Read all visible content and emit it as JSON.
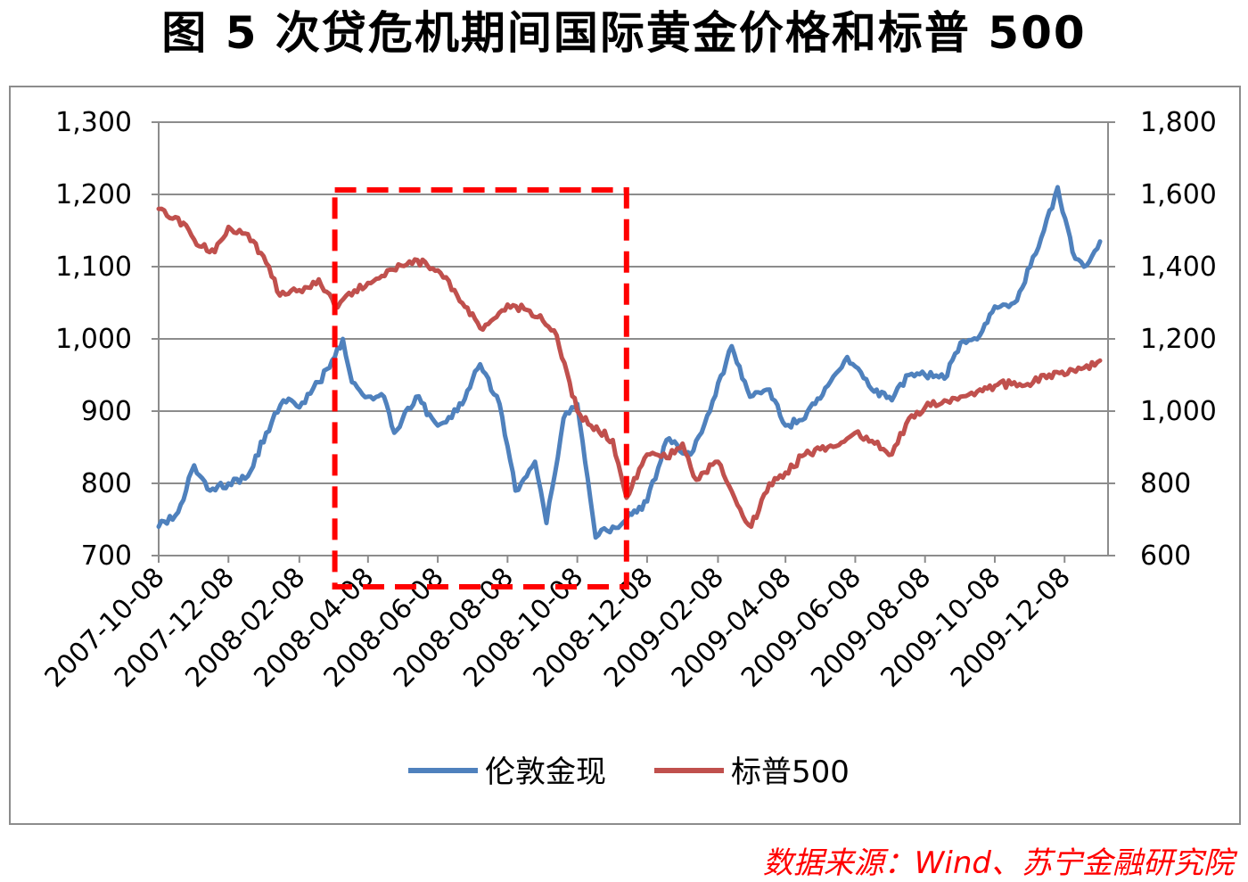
{
  "title": "图 5  次贷危机期间国际黄金价格和标普 500",
  "source": "数据来源：Wind、苏宁金融研究院",
  "chart_data": {
    "type": "line",
    "left_axis": {
      "ylim": [
        700,
        1300
      ],
      "ticks": [
        "700",
        "800",
        "900",
        "1,000",
        "1,100",
        "1,200",
        "1,300"
      ]
    },
    "right_axis": {
      "ylim": [
        600,
        1800
      ],
      "ticks": [
        "600",
        "800",
        "1,000",
        "1,200",
        "1,400",
        "1,600",
        "1,800"
      ]
    },
    "x_tick_labels": [
      "2007-10-08",
      "2007-12-08",
      "2008-02-08",
      "2008-04-08",
      "2008-06-08",
      "2008-08-08",
      "2008-10-08",
      "2008-12-08",
      "2009-02-08",
      "2009-04-08",
      "2009-06-08",
      "2009-08-08",
      "2009-10-08",
      "2009-12-08"
    ],
    "x_range": [
      "2007-10-08",
      "2010-01-15"
    ],
    "grid": true,
    "legend_position": "bottom",
    "highlight_box": {
      "x_range": [
        "2008-03-10",
        "2008-11-20"
      ],
      "color": "#ff0000",
      "style": "dashed"
    },
    "series": [
      {
        "name": "伦敦金现",
        "axis": "left",
        "color": "#4f81bd",
        "points": [
          [
            "2007-10-08",
            740
          ],
          [
            "2007-10-25",
            760
          ],
          [
            "2007-11-08",
            825
          ],
          [
            "2007-11-22",
            790
          ],
          [
            "2007-12-08",
            800
          ],
          [
            "2007-12-25",
            810
          ],
          [
            "2008-01-10",
            870
          ],
          [
            "2008-01-25",
            915
          ],
          [
            "2008-02-08",
            905
          ],
          [
            "2008-02-25",
            940
          ],
          [
            "2008-03-10",
            975
          ],
          [
            "2008-03-17",
            1000
          ],
          [
            "2008-03-25",
            940
          ],
          [
            "2008-04-08",
            920
          ],
          [
            "2008-04-22",
            920
          ],
          [
            "2008-05-01",
            870
          ],
          [
            "2008-05-20",
            920
          ],
          [
            "2008-06-08",
            880
          ],
          [
            "2008-06-25",
            900
          ],
          [
            "2008-07-15",
            965
          ],
          [
            "2008-08-01",
            910
          ],
          [
            "2008-08-15",
            790
          ],
          [
            "2008-09-01",
            830
          ],
          [
            "2008-09-11",
            745
          ],
          [
            "2008-09-26",
            890
          ],
          [
            "2008-10-08",
            910
          ],
          [
            "2008-10-24",
            725
          ],
          [
            "2008-11-08",
            740
          ],
          [
            "2008-11-20",
            750
          ],
          [
            "2008-12-08",
            775
          ],
          [
            "2008-12-25",
            860
          ],
          [
            "2009-01-15",
            840
          ],
          [
            "2009-02-01",
            900
          ],
          [
            "2009-02-20",
            990
          ],
          [
            "2009-03-08",
            920
          ],
          [
            "2009-03-25",
            930
          ],
          [
            "2009-04-08",
            880
          ],
          [
            "2009-04-25",
            890
          ],
          [
            "2009-05-15",
            935
          ],
          [
            "2009-06-01",
            975
          ],
          [
            "2009-06-20",
            935
          ],
          [
            "2009-07-10",
            915
          ],
          [
            "2009-07-25",
            950
          ],
          [
            "2009-08-08",
            950
          ],
          [
            "2009-08-25",
            945
          ],
          [
            "2009-09-08",
            995
          ],
          [
            "2009-09-25",
            1005
          ],
          [
            "2009-10-08",
            1045
          ],
          [
            "2009-10-25",
            1050
          ],
          [
            "2009-11-08",
            1100
          ],
          [
            "2009-11-20",
            1150
          ],
          [
            "2009-12-02",
            1210
          ],
          [
            "2009-12-15",
            1120
          ],
          [
            "2009-12-25",
            1100
          ],
          [
            "2010-01-08",
            1135
          ]
        ]
      },
      {
        "name": "标普500",
        "axis": "right",
        "color": "#c0504d",
        "points": [
          [
            "2007-10-08",
            1560
          ],
          [
            "2007-10-25",
            1535
          ],
          [
            "2007-11-08",
            1475
          ],
          [
            "2007-11-26",
            1440
          ],
          [
            "2007-12-08",
            1510
          ],
          [
            "2007-12-25",
            1490
          ],
          [
            "2008-01-10",
            1410
          ],
          [
            "2008-01-22",
            1320
          ],
          [
            "2008-02-08",
            1335
          ],
          [
            "2008-02-25",
            1365
          ],
          [
            "2008-03-10",
            1290
          ],
          [
            "2008-03-20",
            1320
          ],
          [
            "2008-04-08",
            1355
          ],
          [
            "2008-04-25",
            1390
          ],
          [
            "2008-05-19",
            1420
          ],
          [
            "2008-06-08",
            1390
          ],
          [
            "2008-06-25",
            1320
          ],
          [
            "2008-07-15",
            1230
          ],
          [
            "2008-08-08",
            1295
          ],
          [
            "2008-08-25",
            1280
          ],
          [
            "2008-09-08",
            1250
          ],
          [
            "2008-09-20",
            1210
          ],
          [
            "2008-10-08",
            1000
          ],
          [
            "2008-10-20",
            960
          ],
          [
            "2008-11-08",
            920
          ],
          [
            "2008-11-20",
            760
          ],
          [
            "2008-12-08",
            880
          ],
          [
            "2008-12-25",
            870
          ],
          [
            "2009-01-08",
            910
          ],
          [
            "2009-01-20",
            810
          ],
          [
            "2009-02-08",
            860
          ],
          [
            "2009-02-25",
            740
          ],
          [
            "2009-03-09",
            680
          ],
          [
            "2009-03-25",
            800
          ],
          [
            "2009-04-08",
            830
          ],
          [
            "2009-04-25",
            880
          ],
          [
            "2009-05-15",
            900
          ],
          [
            "2009-06-08",
            940
          ],
          [
            "2009-06-25",
            910
          ],
          [
            "2009-07-10",
            880
          ],
          [
            "2009-07-25",
            980
          ],
          [
            "2009-08-08",
            1010
          ],
          [
            "2009-08-25",
            1030
          ],
          [
            "2009-09-08",
            1040
          ],
          [
            "2009-09-25",
            1060
          ],
          [
            "2009-10-08",
            1070
          ],
          [
            "2009-10-25",
            1080
          ],
          [
            "2009-11-08",
            1070
          ],
          [
            "2009-11-20",
            1100
          ],
          [
            "2009-12-08",
            1100
          ],
          [
            "2009-12-25",
            1120
          ],
          [
            "2010-01-08",
            1140
          ]
        ]
      }
    ]
  }
}
